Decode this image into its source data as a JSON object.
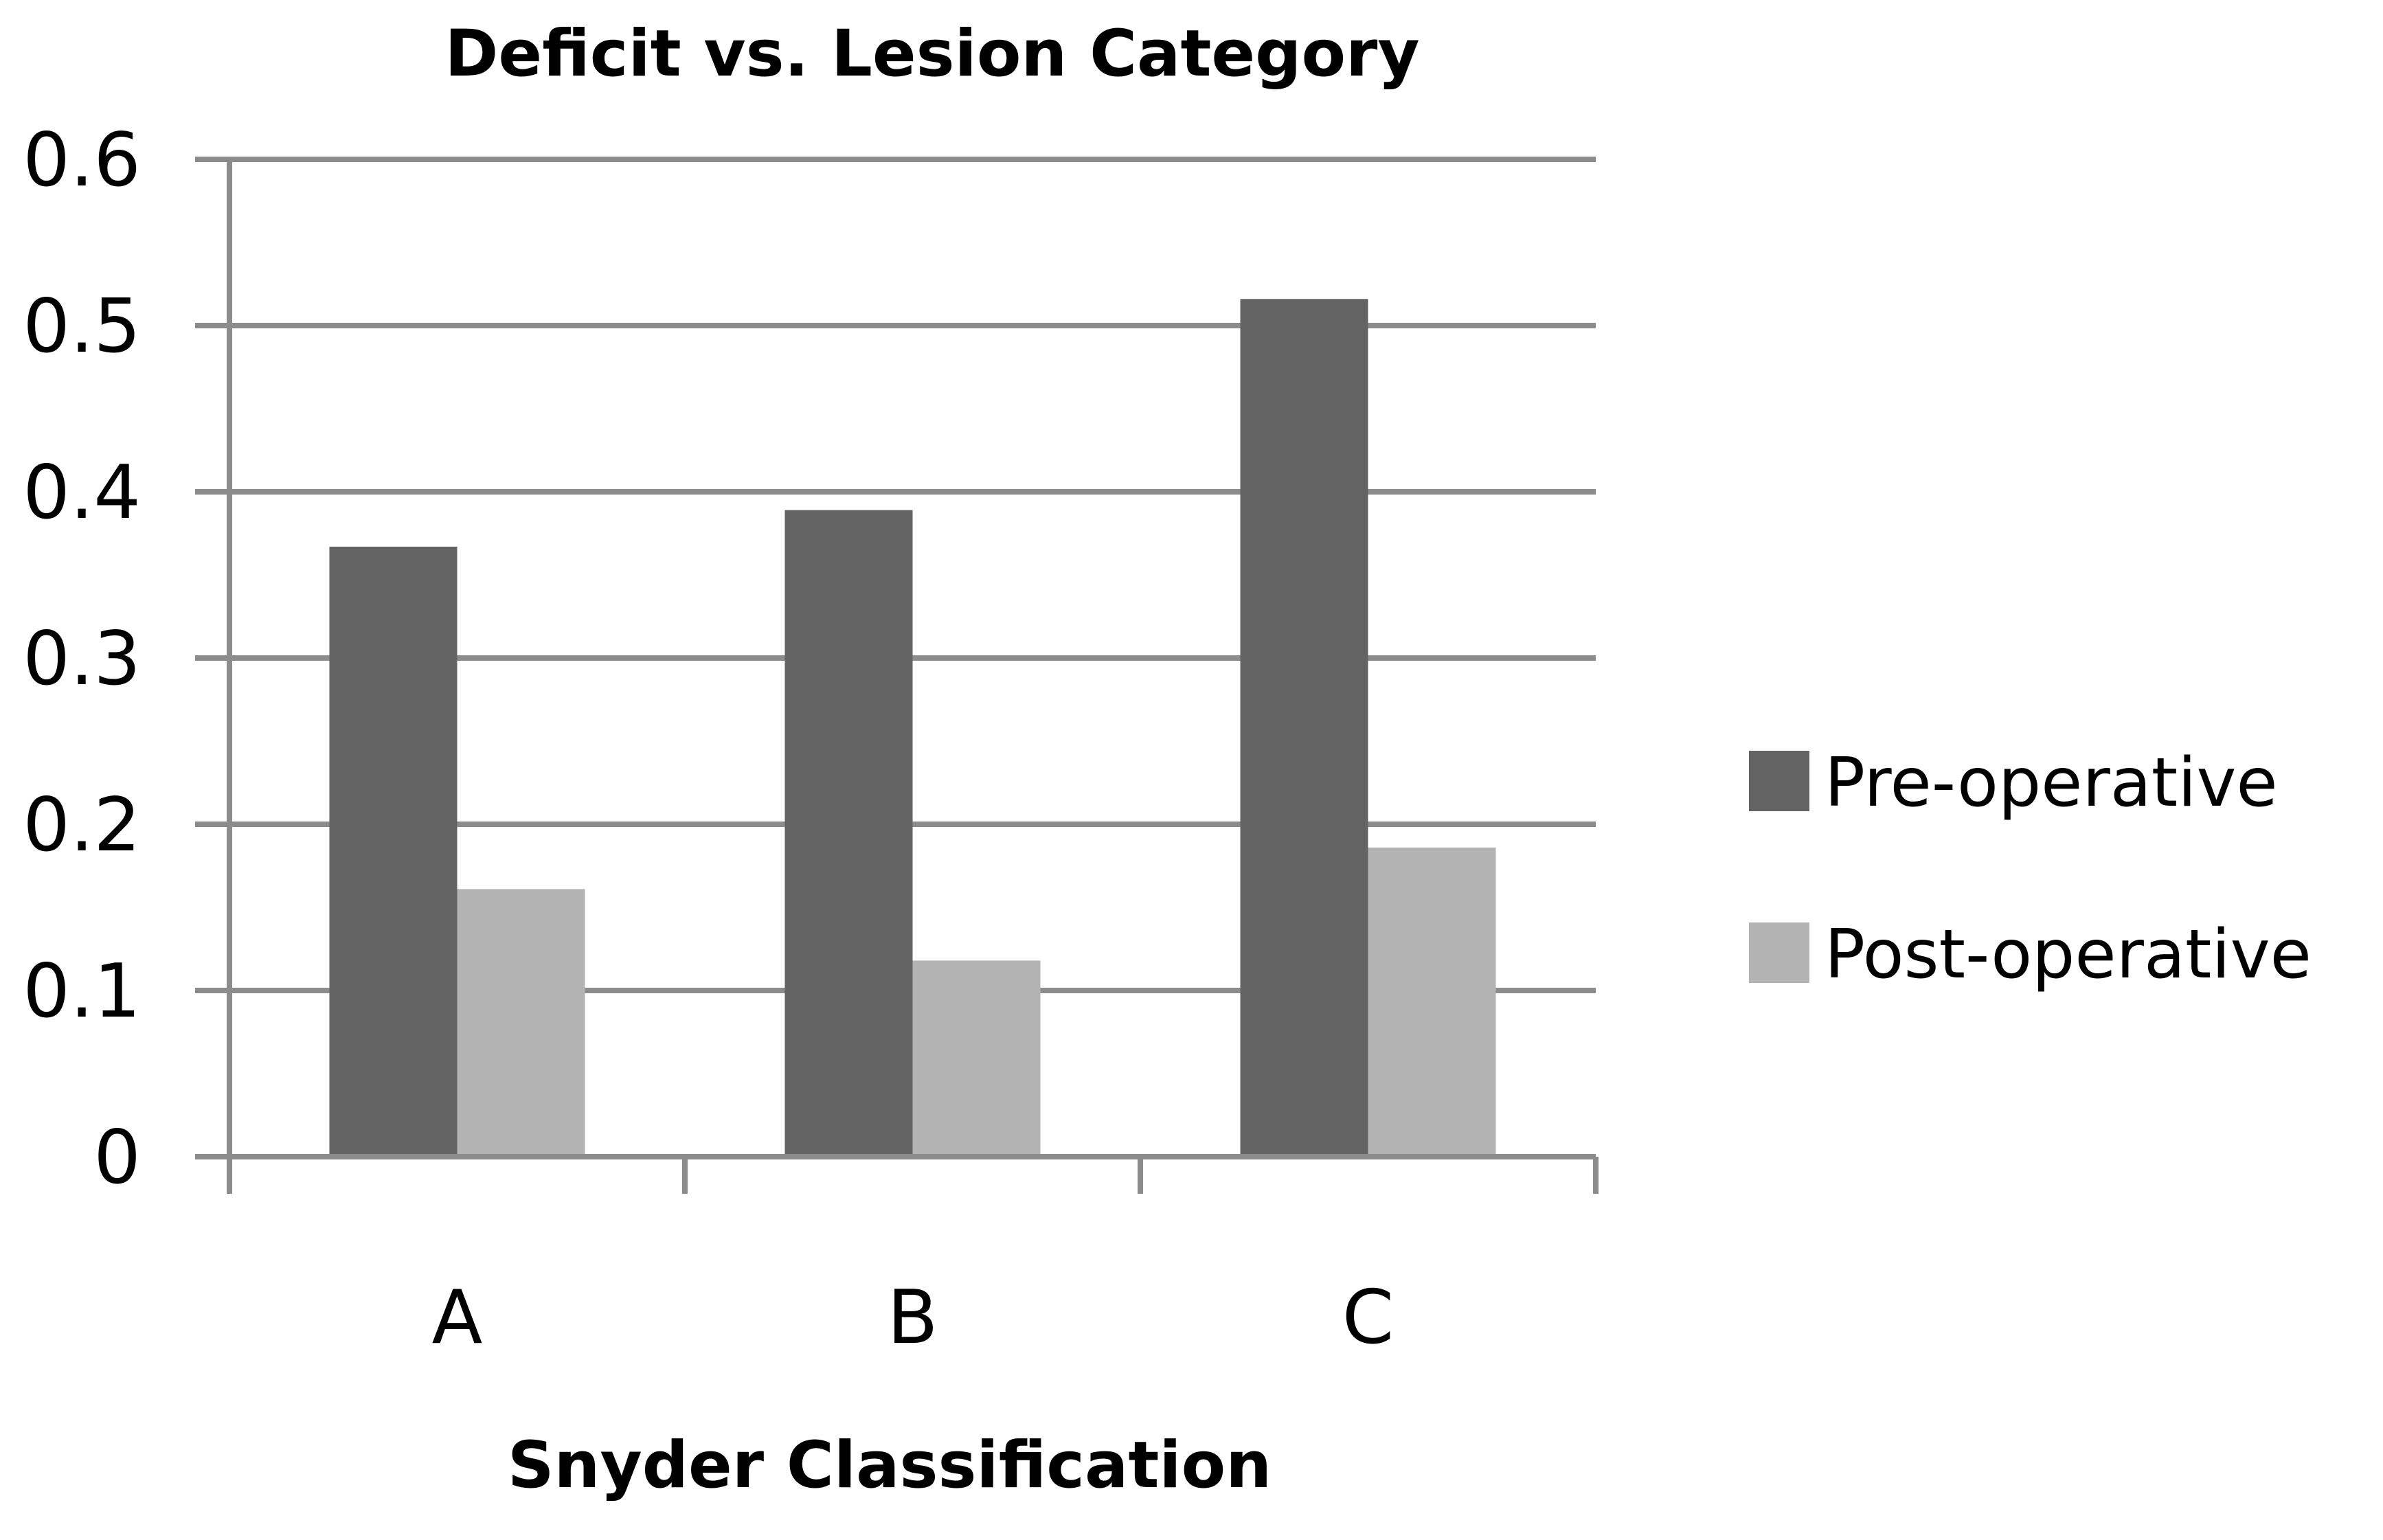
{
  "chart_data": {
    "type": "bar",
    "title": "Deficit vs. Lesion Category",
    "xlabel": "Snyder Classification",
    "ylabel": "",
    "categories": [
      "A",
      "B",
      "C"
    ],
    "series": [
      {
        "name": "Pre-operative",
        "values": [
          0.367,
          0.389,
          0.516
        ],
        "color": "#636363"
      },
      {
        "name": "Post-operative",
        "values": [
          0.161,
          0.118,
          0.186
        ],
        "color": "#b3b3b3"
      }
    ],
    "ylim": [
      0,
      0.6
    ],
    "yticks": [
      "0",
      "0.1",
      "0.2",
      "0.3",
      "0.4",
      "0.5",
      "0.6"
    ],
    "grid": true,
    "legend_position": "right",
    "gridline_color": "#8c8c8c"
  }
}
